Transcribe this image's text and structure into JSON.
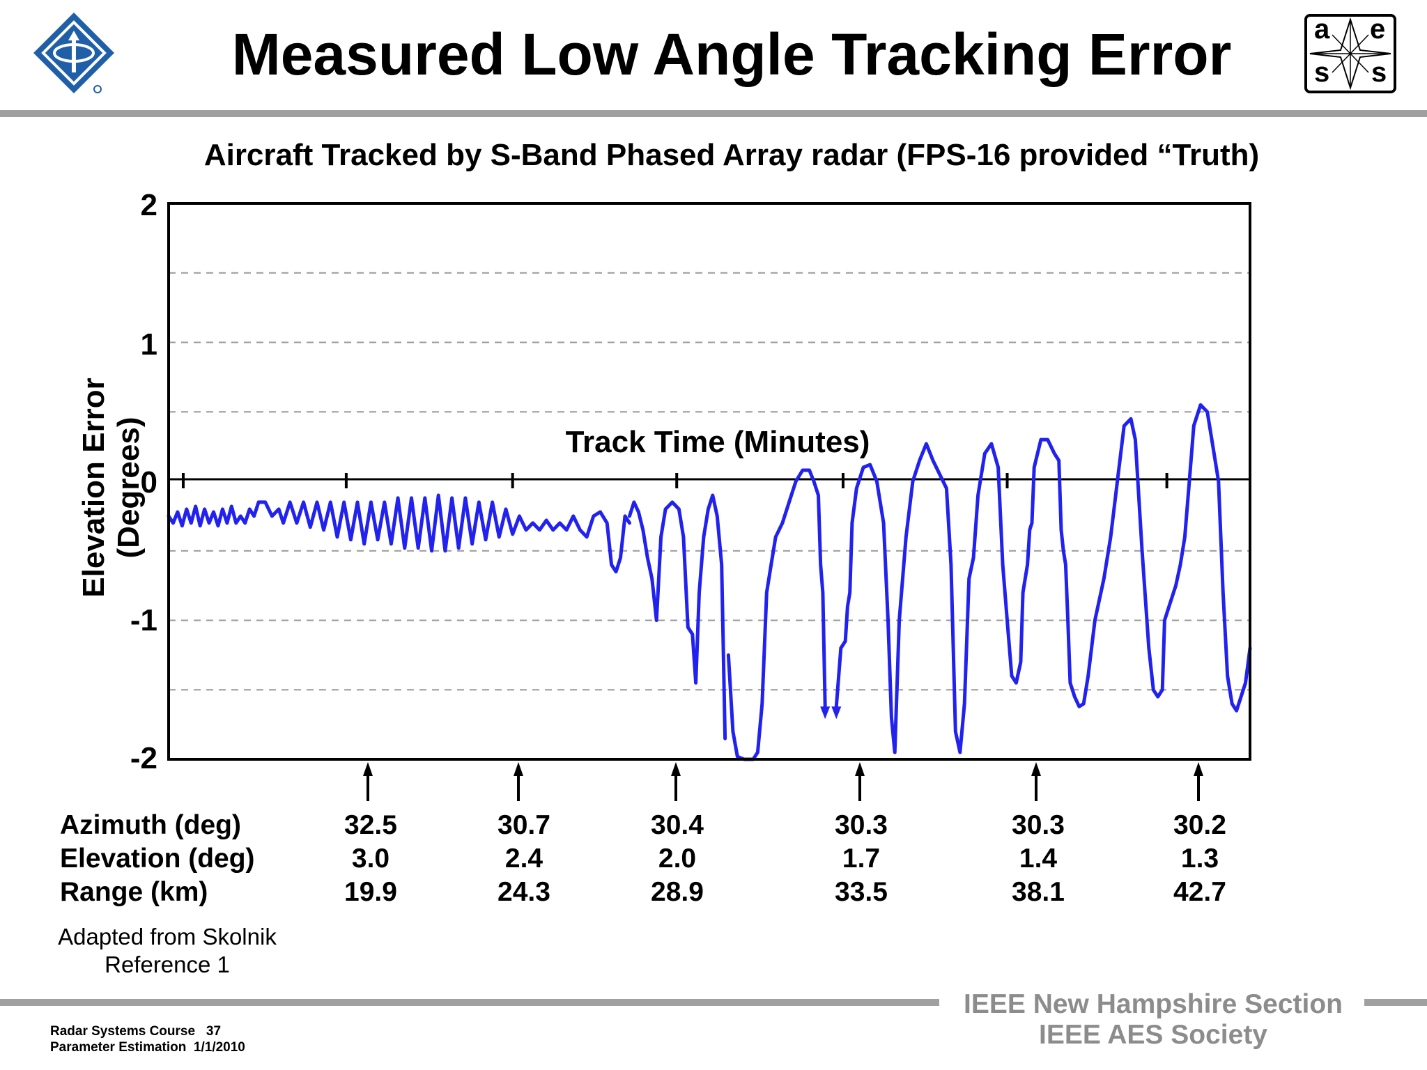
{
  "slide": {
    "title": "Measured Low Angle Tracking Error",
    "source_line1": "Adapted from Skolnik",
    "source_line2": "Reference 1",
    "footer_course": "Radar Systems Course   37",
    "footer_topic": "Parameter Estimation  1/1/2010",
    "org_line1": "IEEE New Hampshire Section",
    "org_line2": "IEEE AES Society",
    "logo_left_icon": "ieee-diamond-logo-icon",
    "logo_right_icon": "aess-logo-icon",
    "logo_right_letters": [
      "a",
      "e",
      "s",
      "s"
    ],
    "rule_color": "#a0a0a0"
  },
  "chart_data": {
    "type": "line",
    "title": "Aircraft Tracked by S-Band Phased Array radar (FPS-16 provided “Truth)",
    "xlabel": "Track Time (Minutes)",
    "ylabel": "Elevation Error (Degrees)",
    "ylim": [
      -2,
      2
    ],
    "yticks": [
      "2",
      "1",
      "0",
      "-1",
      "-2"
    ],
    "grid": "dashed horizontal lines at ±0.5, ±1, ±1.5",
    "series": [
      {
        "color": "#2222ee",
        "segments": [
          "0,-0.25 0.2,-0.30 0.4,-0.22 0.6,-0.32 0.8,-0.20 1.0,-0.30 1.2,-0.18 1.4,-0.32 1.6,-0.20 1.8,-0.30 2.0,-0.22 2.2,-0.32 2.4,-0.20 2.6,-0.30 2.8,-0.18 3.0,-0.30 3.2,-0.25 3.4,-0.30 3.6,-0.20 3.8,-0.25 4.0,-0.15 4.3,-0.15 4.6,-0.25 4.9,-0.20 5.1,-0.30 5.4,-0.15 5.7,-0.30 6.0,-0.15 6.3,-0.33 6.6,-0.15 6.9,-0.35 7.2,-0.15 7.5,-0.40 7.8,-0.15 8.1,-0.42 8.4,-0.15 8.7,-0.45 9.0,-0.15 9.3,-0.42 9.6,-0.15 9.9,-0.45 10.2,-0.12 10.5,-0.48 10.8,-0.12 11.1,-0.48 11.4,-0.12 11.7,-0.50 12.0,-0.10 12.3,-0.50 12.6,-0.12 12.9,-0.48 13.2,-0.12 13.5,-0.45 13.8,-0.15 14.1,-0.42 14.4,-0.15 14.7,-0.40 15.0,-0.20 15.3,-0.38 15.6,-0.25 15.9,-0.35 16.2,-0.30 16.5,-0.35 16.8,-0.28 17.1,-0.35 17.4,-0.30 17.7,-0.35 18.0,-0.25 18.3,-0.35 18.6,-0.40 18.9,-0.25 19.2,-0.22 19.5,-0.30 19.7,-0.60 19.9,-0.65 20.1,-0.55 20.3,-0.25 20.5,-0.30",
          "20.5,-0.25 20.7,-0.15 20.9,-0.22 21.1,-0.35 21.3,-0.55 21.5,-0.70 21.7,-1.00 21.9,-0.40 22.1,-0.20 22.4,-0.15 22.7,-0.20 22.9,-0.40 23.1,-1.05 23.3,-1.10 23.45,-1.45 23.6,-0.80 23.8,-0.40 24.0,-0.20 24.2,-0.10 24.4,-0.25 24.6,-0.60 24.75,-1.85",
          "24.9,-1.25 25.1,-1.80 25.3,-1.98 25.6,-2.00 26.0,-2.00 26.2,-1.95 26.4,-1.60 26.6,-0.80 26.8,-0.60 27.0,-0.40 27.3,-0.30 27.6,-0.15 27.9,0.00 28.2,0.08 28.5,0.08 28.7,0.00 28.9,-0.10 29.0,-0.60 29.1,-0.80 29.2,-1.62",
          "29.7,-1.62 29.9,-1.20 30.1,-1.15 30.2,-0.90 30.3,-0.80 30.4,-0.30 30.6,-0.05 30.9,0.10 31.2,0.12 31.5,0.00 31.8,-0.30 32.0,-1.00 32.15,-1.70 32.3,-1.95 32.5,-1.00 32.8,-0.40 33.1,0.00 33.4,0.15 33.7,0.27 34.0,0.15 34.3,0.05 34.6,-0.05 34.8,-0.60 34.9,-1.20 35.0,-1.80 35.2,-1.95 35.4,-1.60 35.6,-0.70 35.8,-0.55 36.0,-0.10 36.3,0.20 36.6,0.27 36.9,0.10 37.1,-0.60 37.3,-1.00 37.5,-1.40 37.7,-1.45 37.9,-1.30 38.0,-0.80 38.1,-0.70 38.2,-0.60 38.3,-0.35 38.4,-0.30 38.5,0.10 38.8,0.30 39.1,0.30 39.4,0.20 39.6,0.15 39.7,-0.35 39.8,-0.50 39.9,-0.60 40.0,-1.00 40.1,-1.45 40.3,-1.55 40.5,-1.62 40.7,-1.60 40.9,-1.40 41.2,-1.00 41.6,-0.70 41.9,-0.40 42.2,0.00 42.5,0.40 42.8,0.45 43.0,0.30 43.3,-0.50 43.6,-1.20 43.8,-1.50 44.0,-1.55 44.2,-1.50 44.3,-1.00 44.5,-0.90 44.8,-0.75 45.0,-0.60 45.2,-0.40 45.4,0.00 45.6,0.40 45.9,0.55 46.2,0.50 46.5,0.20 46.7,0.00 46.9,-0.80 47.1,-1.40 47.3,-1.60 47.5,-1.65 47.7,-1.55 47.9,-1.45 48.1,-1.20"
        ]
      }
    ],
    "arrowheads": [
      {
        "x": 29.2,
        "y": -1.62
      },
      {
        "x": 29.7,
        "y": -1.62
      }
    ],
    "markers": {
      "row_labels": [
        "Azimuth (deg)",
        "Elevation (deg)",
        "Range (km)"
      ],
      "azimuth_deg": [
        "32.5",
        "30.7",
        "30.4",
        "30.3",
        "30.3",
        "30.2"
      ],
      "elevation_deg": [
        "3.0",
        "2.4",
        "2.0",
        "1.7",
        "1.4",
        "1.3"
      ],
      "range_km": [
        "19.9",
        "24.3",
        "28.9",
        "33.5",
        "38.1",
        "42.7"
      ]
    }
  }
}
